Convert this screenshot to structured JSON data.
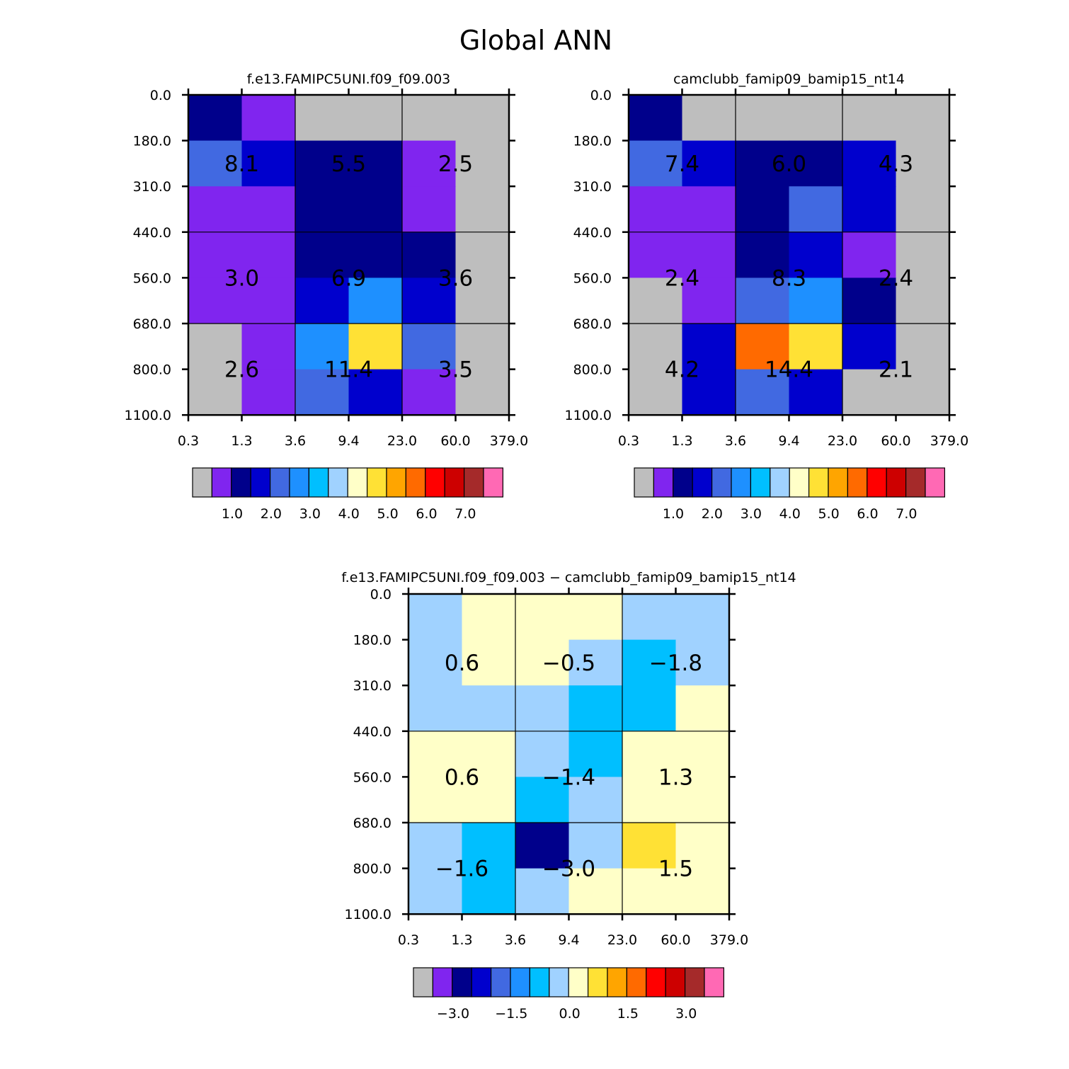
{
  "figure_title": "Global ANN",
  "palette": [
    "#bebebe",
    "#8025ef",
    "#00008b",
    "#0000cd",
    "#4169e1",
    "#1e90ff",
    "#00bfff",
    "#a0d2ff",
    "#ffffc8",
    "#ffe135",
    "#ffa500",
    "#ff6a00",
    "#ff0000",
    "#cd0000",
    "#a52a2a",
    "#ff69b4"
  ],
  "chart_data": [
    {
      "type": "heatmap",
      "name": "panel-model-1",
      "title": "f.e13.FAMIPC5UNI.f09_f09.003",
      "x_ticks": [
        "0.3",
        "1.3",
        "3.6",
        "9.4",
        "23.0",
        "60.0",
        "379.0"
      ],
      "y_ticks": [
        "0.0",
        "180.0",
        "310.0",
        "440.0",
        "560.0",
        "680.0",
        "800.0",
        "1100.0"
      ],
      "cells": [
        [
          2,
          1,
          0,
          0,
          0,
          0
        ],
        [
          4,
          3,
          2,
          2,
          1,
          0
        ],
        [
          1,
          1,
          2,
          2,
          1,
          0
        ],
        [
          1,
          1,
          2,
          2,
          2,
          0
        ],
        [
          1,
          1,
          3,
          5,
          3,
          0
        ],
        [
          0,
          1,
          5,
          9,
          4,
          0
        ],
        [
          0,
          1,
          4,
          3,
          1,
          0
        ]
      ],
      "group_labels": [
        [
          "8.1",
          "5.5",
          "2.5"
        ],
        [
          "3.0",
          "6.9",
          "3.6"
        ],
        [
          "2.6",
          "11.4",
          "3.5"
        ]
      ],
      "colorbar_labels": [
        "1.0",
        "2.0",
        "3.0",
        "4.0",
        "5.0",
        "6.0",
        "7.0"
      ]
    },
    {
      "type": "heatmap",
      "name": "panel-model-2",
      "title": "camclubb_famip09_bamip15_nt14",
      "x_ticks": [
        "0.3",
        "1.3",
        "3.6",
        "9.4",
        "23.0",
        "60.0",
        "379.0"
      ],
      "y_ticks": [
        "0.0",
        "180.0",
        "310.0",
        "440.0",
        "560.0",
        "680.0",
        "800.0",
        "1100.0"
      ],
      "cells": [
        [
          2,
          0,
          0,
          0,
          0,
          0
        ],
        [
          4,
          3,
          2,
          2,
          3,
          0
        ],
        [
          1,
          1,
          2,
          4,
          3,
          0
        ],
        [
          1,
          1,
          2,
          3,
          1,
          0
        ],
        [
          0,
          1,
          4,
          5,
          2,
          0
        ],
        [
          0,
          3,
          11,
          9,
          3,
          0
        ],
        [
          0,
          3,
          4,
          3,
          0,
          0
        ]
      ],
      "group_labels": [
        [
          "7.4",
          "6.0",
          "4.3"
        ],
        [
          "2.4",
          "8.3",
          "2.4"
        ],
        [
          "4.2",
          "14.4",
          "2.1"
        ]
      ],
      "colorbar_labels": [
        "1.0",
        "2.0",
        "3.0",
        "4.0",
        "5.0",
        "6.0",
        "7.0"
      ]
    },
    {
      "type": "heatmap",
      "name": "panel-difference",
      "title": "f.e13.FAMIPC5UNI.f09_f09.003 − camclubb_famip09_bamip15_nt14",
      "x_ticks": [
        "0.3",
        "1.3",
        "3.6",
        "9.4",
        "23.0",
        "60.0",
        "379.0"
      ],
      "y_ticks": [
        "0.0",
        "180.0",
        "310.0",
        "440.0",
        "560.0",
        "680.0",
        "800.0",
        "1100.0"
      ],
      "cells": [
        [
          7,
          8,
          8,
          8,
          7,
          7
        ],
        [
          7,
          8,
          8,
          7,
          6,
          7
        ],
        [
          7,
          7,
          7,
          6,
          6,
          8
        ],
        [
          8,
          8,
          7,
          6,
          8,
          8
        ],
        [
          8,
          8,
          6,
          7,
          8,
          8
        ],
        [
          7,
          6,
          2,
          7,
          9,
          8
        ],
        [
          7,
          6,
          7,
          8,
          8,
          8
        ]
      ],
      "group_labels": [
        [
          "0.6",
          "−0.5",
          "−1.8"
        ],
        [
          "0.6",
          "−1.4",
          "1.3"
        ],
        [
          "−1.6",
          "−3.0",
          "1.5"
        ]
      ],
      "colorbar_labels": [
        "−3.0",
        "−1.5",
        "0.0",
        "1.5",
        "3.0"
      ]
    }
  ]
}
